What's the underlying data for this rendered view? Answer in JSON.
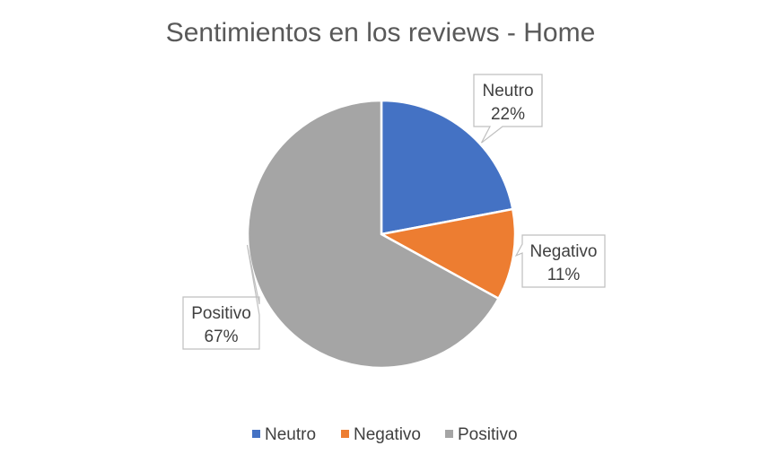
{
  "chart_data": {
    "type": "pie",
    "title": "Sentimientos en los reviews - Home",
    "categories": [
      "Neutro",
      "Negativo",
      "Positivo"
    ],
    "values": [
      22,
      11,
      67
    ],
    "value_labels": [
      "22%",
      "11%",
      "67%"
    ],
    "colors": [
      "#4472C4",
      "#ED7D31",
      "#A5A5A5"
    ],
    "legend": "bottom",
    "data_labels": "callout"
  }
}
